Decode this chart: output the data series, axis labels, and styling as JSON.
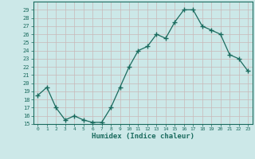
{
  "x": [
    0,
    1,
    2,
    3,
    4,
    5,
    6,
    7,
    8,
    9,
    10,
    11,
    12,
    13,
    14,
    15,
    16,
    17,
    18,
    19,
    20,
    21,
    22,
    23
  ],
  "y": [
    18.5,
    19.5,
    17.0,
    15.5,
    16.0,
    15.5,
    15.2,
    15.2,
    17.0,
    19.5,
    22.0,
    24.0,
    24.5,
    26.0,
    25.5,
    27.5,
    29.0,
    29.0,
    27.0,
    26.5,
    26.0,
    23.5,
    23.0,
    21.5
  ],
  "xlabel": "Humidex (Indice chaleur)",
  "ylim": [
    15,
    30
  ],
  "xlim": [
    -0.5,
    23.5
  ],
  "yticks": [
    15,
    16,
    17,
    18,
    19,
    20,
    21,
    22,
    23,
    24,
    25,
    26,
    27,
    28,
    29
  ],
  "xticks": [
    0,
    1,
    2,
    3,
    4,
    5,
    6,
    7,
    8,
    9,
    10,
    11,
    12,
    13,
    14,
    15,
    16,
    17,
    18,
    19,
    20,
    21,
    22,
    23
  ],
  "line_color": "#1a6b5e",
  "marker_color": "#1a6b5e",
  "bg_color": "#cce8e8",
  "plot_bg_color": "#cce8e8",
  "grid_color_major": "#c8b8b8",
  "grid_color_minor": "#ffffff",
  "axis_label_color": "#1a6b5e",
  "tick_label_color": "#1a6b5e",
  "spine_color": "#1a6b5e"
}
